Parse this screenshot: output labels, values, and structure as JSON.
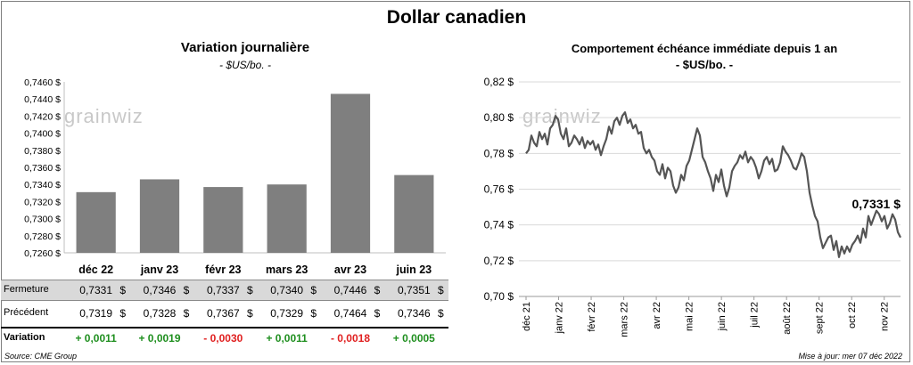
{
  "title": "Dollar canadien",
  "source": "Source: CME Group",
  "updated": "Mise à jour: mer 07 déc 2022",
  "watermark": "grainwiz",
  "colors": {
    "bar": "#7f7f7f",
    "line": "#555555",
    "grid": "#d9d9d9",
    "positive": "#1f8f1f",
    "negative": "#e02020"
  },
  "chart_data": [
    {
      "type": "bar",
      "title": "Variation  journalière",
      "subtitle": "- $US/bo. -",
      "categories": [
        "déc 22",
        "janv 23",
        "févr 23",
        "mars 23",
        "avr 23",
        "juin 23"
      ],
      "values": [
        0.7331,
        0.7346,
        0.7337,
        0.734,
        0.7446,
        0.7351
      ],
      "ylim": [
        0.726,
        0.746
      ],
      "yticks": [
        "0,7260 $",
        "0,7280 $",
        "0,7300 $",
        "0,7320 $",
        "0,7340 $",
        "0,7360 $",
        "0,7380 $",
        "0,7400 $",
        "0,7420 $",
        "0,7440 $",
        "0,7460 $"
      ],
      "grid": false
    },
    {
      "type": "line",
      "title": "Comportement échéance immédiate depuis 1 an",
      "subtitle": "- $US/bo. -",
      "ylim": [
        0.7,
        0.82
      ],
      "yticks": [
        "0,70 $",
        "0,72 $",
        "0,74 $",
        "0,76 $",
        "0,78 $",
        "0,80 $",
        "0,82 $"
      ],
      "xticks": [
        "déc 21",
        "janv 22",
        "févr 22",
        "mars 22",
        "avr 22",
        "mai 22",
        "juin 22",
        "juil 22",
        "août 22",
        "sept 22",
        "oct 22",
        "nov 22"
      ],
      "last_label": "0,7331 $",
      "grid": true,
      "series": [
        {
          "values": [
            0.78,
            0.782,
            0.79,
            0.786,
            0.784,
            0.792,
            0.788,
            0.791,
            0.785,
            0.794,
            0.796,
            0.801,
            0.799,
            0.791,
            0.788,
            0.794,
            0.784,
            0.786,
            0.79,
            0.788,
            0.785,
            0.789,
            0.783,
            0.787,
            0.785,
            0.787,
            0.782,
            0.785,
            0.779,
            0.784,
            0.788,
            0.795,
            0.791,
            0.798,
            0.8,
            0.796,
            0.801,
            0.803,
            0.797,
            0.799,
            0.794,
            0.796,
            0.791,
            0.792,
            0.783,
            0.78,
            0.782,
            0.778,
            0.776,
            0.77,
            0.768,
            0.774,
            0.766,
            0.772,
            0.77,
            0.762,
            0.758,
            0.761,
            0.768,
            0.765,
            0.773,
            0.776,
            0.782,
            0.788,
            0.794,
            0.79,
            0.778,
            0.775,
            0.77,
            0.766,
            0.759,
            0.768,
            0.764,
            0.771,
            0.762,
            0.756,
            0.761,
            0.77,
            0.773,
            0.775,
            0.779,
            0.777,
            0.781,
            0.775,
            0.778,
            0.776,
            0.772,
            0.766,
            0.77,
            0.776,
            0.778,
            0.774,
            0.777,
            0.77,
            0.771,
            0.775,
            0.784,
            0.781,
            0.779,
            0.776,
            0.772,
            0.771,
            0.775,
            0.78,
            0.778,
            0.77,
            0.758,
            0.751,
            0.745,
            0.742,
            0.733,
            0.727,
            0.73,
            0.733,
            0.734,
            0.726,
            0.731,
            0.722,
            0.728,
            0.724,
            0.728,
            0.725,
            0.729,
            0.731,
            0.734,
            0.73,
            0.738,
            0.733,
            0.745,
            0.74,
            0.744,
            0.748,
            0.746,
            0.742,
            0.745,
            0.738,
            0.741,
            0.746,
            0.743,
            0.736,
            0.733
          ]
        }
      ]
    }
  ],
  "table": {
    "rows": [
      {
        "label": "Fermeture",
        "values": [
          "0,7331",
          "0,7346",
          "0,7337",
          "0,7340",
          "0,7446",
          "0,7351"
        ],
        "unit": "$"
      },
      {
        "label": "Précédent",
        "values": [
          "0,7319",
          "0,7328",
          "0,7367",
          "0,7329",
          "0,7464",
          "0,7346"
        ],
        "unit": "$"
      },
      {
        "label": "Variation",
        "values": [
          "+ 0,0011",
          "+ 0,0019",
          "- 0,0030",
          "+ 0,0011",
          "- 0,0018",
          "+ 0,0005"
        ],
        "signs": [
          "pos",
          "pos",
          "neg",
          "pos",
          "neg",
          "pos"
        ]
      }
    ]
  }
}
